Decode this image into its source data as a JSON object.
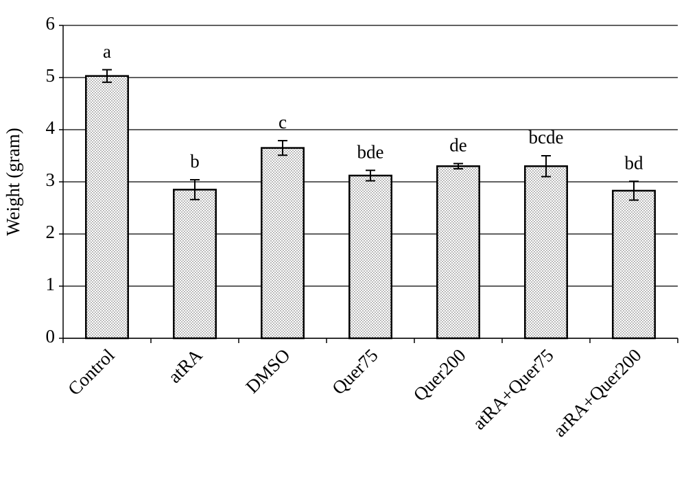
{
  "chart_data": {
    "type": "bar",
    "y_label": "Weight (gram)",
    "categories": [
      "Control",
      "atRA",
      "DMSO",
      "Quer75",
      "Quer200",
      "atRA+Quer75",
      "arRA+Quer200"
    ],
    "values": [
      5.03,
      2.85,
      3.65,
      3.12,
      3.3,
      3.3,
      2.83
    ],
    "errors": [
      0.12,
      0.19,
      0.14,
      0.1,
      0.05,
      0.2,
      0.18
    ],
    "annotations": [
      "a",
      "b",
      "c",
      "bde",
      "de",
      "bcde",
      "bd"
    ],
    "color": "#8a8a8a",
    "ylim": [
      0,
      6
    ],
    "yticks": [
      0,
      1,
      2,
      3,
      4,
      5,
      6
    ],
    "grid": true
  }
}
